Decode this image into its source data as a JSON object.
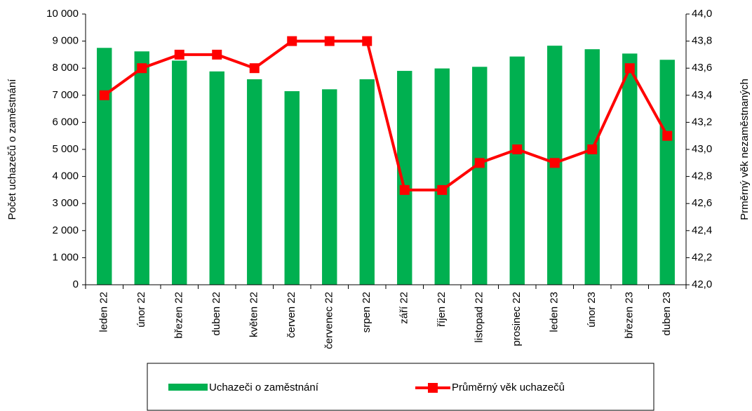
{
  "chart_data": {
    "type": "bar_line",
    "categories": [
      "leden 22",
      "únor 22",
      "březen 22",
      "duben 22",
      "květen 22",
      "červen 22",
      "červenec 22",
      "srpen 22",
      "září 22",
      "říjen 22",
      "listopad 22",
      "prosinec 22",
      "leden 23",
      "únor 23",
      "březen 23",
      "duben 23"
    ],
    "series": [
      {
        "name": "Uchazeči o zaměstnání",
        "type": "bar",
        "color": "#00b050",
        "values": [
          8750,
          8620,
          8280,
          7880,
          7590,
          7150,
          7220,
          7590,
          7900,
          7990,
          8050,
          8430,
          8830,
          8700,
          8540,
          8310
        ]
      },
      {
        "name": "Průměrný věk uchazečů",
        "type": "line",
        "axis": "y2",
        "color": "#ff0000",
        "values": [
          43.4,
          43.6,
          43.7,
          43.7,
          43.6,
          43.8,
          43.8,
          43.8,
          42.7,
          42.7,
          42.9,
          43.0,
          42.9,
          43.0,
          43.6,
          43.1
        ]
      }
    ],
    "ylabel": "Počet uchazečů o zaměstnání",
    "y2label": "Prměrný věk nezaměstnaných",
    "ylim": [
      0,
      10000
    ],
    "yticks": [
      0,
      {
        "value": 1000,
        "label": "1 000"
      },
      {
        "value": 2000,
        "label": "2 000"
      },
      {
        "value": 3000,
        "label": "3 000"
      },
      {
        "value": 4000,
        "label": "4 000"
      },
      {
        "value": 5000,
        "label": "5 000"
      },
      {
        "value": 6000,
        "label": "6 000"
      },
      {
        "value": 7000,
        "label": "7 000"
      },
      {
        "value": 8000,
        "label": "8 000"
      },
      {
        "value": 9000,
        "label": "9 000"
      },
      {
        "value": 10000,
        "label": "10 000"
      }
    ],
    "y2lim": [
      42,
      44
    ],
    "y2ticks": [
      {
        "value": 42,
        "label": "42,0"
      },
      {
        "value": 42.2,
        "label": "42,2"
      },
      {
        "value": 42.4,
        "label": "42,4"
      },
      {
        "value": 42.6,
        "label": "42,6"
      },
      {
        "value": 42.8,
        "label": "42,8"
      },
      {
        "value": 43,
        "label": "43,0"
      },
      {
        "value": 43.2,
        "label": "43,2"
      },
      {
        "value": 43.4,
        "label": "43,4"
      },
      {
        "value": 43.6,
        "label": "43,6"
      },
      {
        "value": 43.8,
        "label": "43,8"
      },
      {
        "value": 44,
        "label": "44,0"
      }
    ],
    "legend": "bottom"
  }
}
